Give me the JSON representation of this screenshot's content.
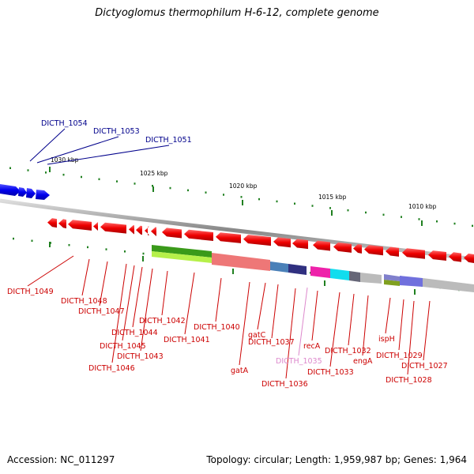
{
  "title": "Dictyoglomus thermophilum H-6-12, complete genome",
  "accession": "Accession: NC_011297",
  "topology": "Topology: circular; Length: 1,959,987 bp; Genes: 1,964",
  "ticks": [
    "1030 kbp",
    "1025 kbp",
    "1020 kbp",
    "1015 kbp",
    "1010 kbp"
  ],
  "colors": {
    "blue_genes": "#0000ee",
    "red_genes": "#ee0000",
    "green_block": "#3a9a1a",
    "lime_block": "#b6f04a",
    "salmon_block": "#ee7777",
    "steel_block": "#4a80b8",
    "navy_block": "#303080",
    "magenta_block": "#ee22aa",
    "cyan_block": "#11ddee",
    "gray_block": "#bbbbbb",
    "purple_block": "#7070dd",
    "olive_block": "#80a020",
    "tick_green": "#208020",
    "backbone": "#999999"
  },
  "labels": {
    "DICTH_1054": "DICTH_1054",
    "DICTH_1053": "DICTH_1053",
    "DICTH_1051": "DICTH_1051",
    "DICTH_1049": "DICTH_1049",
    "DICTH_1048": "DICTH_1048",
    "DICTH_1047": "DICTH_1047",
    "DICTH_1042": "DICTH_1042",
    "DICTH_1044": "DICTH_1044",
    "DICTH_1045": "DICTH_1045",
    "DICTH_1043": "DICTH_1043",
    "DICTH_1046": "DICTH_1046",
    "DICTH_1040": "DICTH_1040",
    "DICTH_1041": "DICTH_1041",
    "gatA": "gatA",
    "gatC": "gatC",
    "DICTH_1037": "DICTH_1037",
    "DICTH_1035": "DICTH_1035",
    "DICTH_1036": "DICTH_1036",
    "recA": "recA",
    "DICTH_1033": "DICTH_1033",
    "DICTH_1032": "DICTH_1032",
    "engA": "engA",
    "ispH": "ispH",
    "DICTH_1029": "DICTH_1029",
    "DICTH_1028": "DICTH_1028",
    "DICTH_1027": "DICTH_1027"
  }
}
